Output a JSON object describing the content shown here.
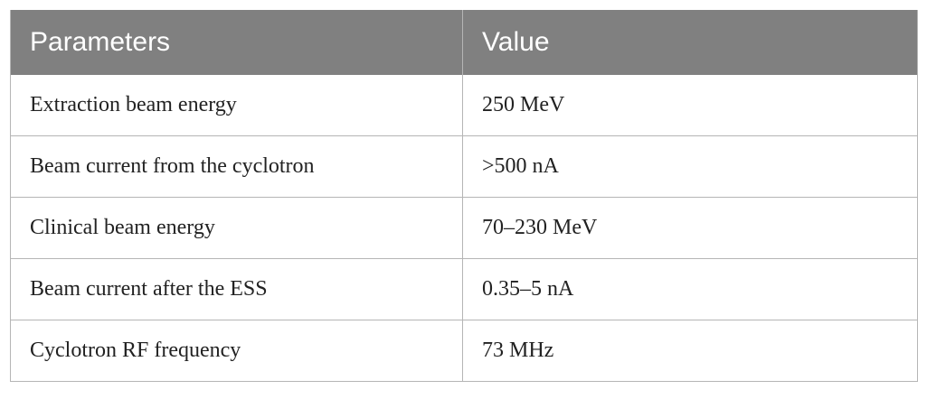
{
  "table": {
    "header": [
      "Parameters",
      "Value"
    ],
    "rows": [
      [
        "Extraction beam energy",
        "250 MeV"
      ],
      [
        "Beam current from the cyclotron",
        ">500 nA"
      ],
      [
        "Clinical beam energy",
        "70–230 MeV"
      ],
      [
        "Beam current after the ESS",
        "0.35–5 nA"
      ],
      [
        "Cyclotron RF frequency",
        "73 MHz"
      ]
    ]
  }
}
